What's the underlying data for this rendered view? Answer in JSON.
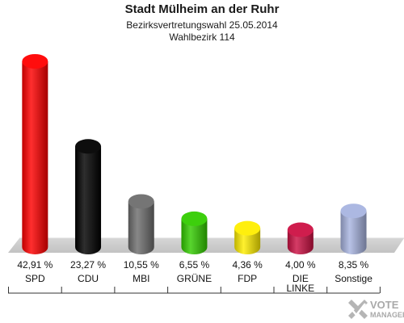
{
  "header": {
    "title": "Stadt Mülheim an der Ruhr",
    "subtitle": "Bezirksvertretungswahl 25.05.2014",
    "subtitle2": "Wahlbezirk 114"
  },
  "watermark": {
    "line1": "VOTE",
    "line2": "MANAGER"
  },
  "chart_data": {
    "type": "bar",
    "style": "3d-cylinder",
    "title": "Stadt Mülheim an der Ruhr",
    "categories": [
      "SPD",
      "CDU",
      "MBI",
      "GRÜNE",
      "FDP",
      "DIE LINKE",
      "Sonstige"
    ],
    "values": [
      42.91,
      23.27,
      10.55,
      6.55,
      4.36,
      4.0,
      8.35
    ],
    "value_labels": [
      "42,91 %",
      "23,27 %",
      "10,55 %",
      "6,55 %",
      "4,36 %",
      "4,00 %",
      "8,35 %"
    ],
    "category_lines": [
      [
        "SPD"
      ],
      [
        "CDU"
      ],
      [
        "MBI"
      ],
      [
        "GRÜNE"
      ],
      [
        "FDP"
      ],
      [
        "DIE",
        "LINKE"
      ],
      [
        "Sonstige"
      ]
    ],
    "colors": [
      "#ff0000",
      "#000000",
      "#6e6e6e",
      "#33cc00",
      "#ffee00",
      "#cc1144",
      "#a8b4e0"
    ],
    "ylim": [
      0,
      42.91
    ],
    "grid": false,
    "legend": "none"
  }
}
